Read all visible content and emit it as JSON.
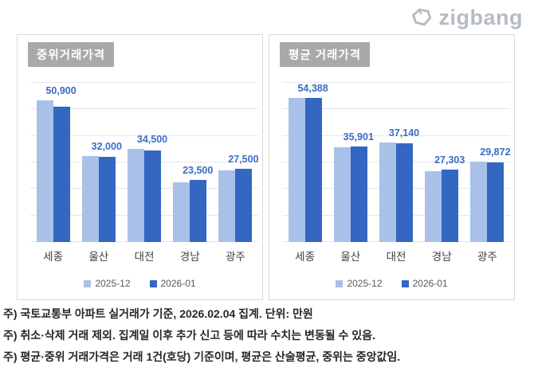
{
  "logo": {
    "text": "zigbang"
  },
  "colors": {
    "bar_2025_12": "#A9C1E8",
    "bar_2026_01": "#3367C2",
    "value_label": "#3B6CC5",
    "gridline": "#E4E7EC",
    "title_bg": "#A9A9A9",
    "title_text": "#FFFFFF",
    "axis_text": "#3F3F3F",
    "legend_text": "#595959",
    "panel_border": "#D8D8D8",
    "logo": "#B6BCC4",
    "footnote_text": "#262626"
  },
  "chart_data": [
    {
      "type": "bar",
      "title": "중위거래가격",
      "categories": [
        "세종",
        "울산",
        "대전",
        "경남",
        "광주"
      ],
      "series": [
        {
          "name": "2025-12",
          "labeled": false,
          "values": [
            53300,
            32500,
            35000,
            22400,
            27000
          ]
        },
        {
          "name": "2026-01",
          "labeled": true,
          "values": [
            50900,
            32000,
            34500,
            23500,
            27500
          ],
          "labels": [
            "50,900",
            "32,000",
            "34,500",
            "23,500",
            "27,500"
          ]
        }
      ],
      "ylim": [
        0,
        60000
      ],
      "grid_step": 10000,
      "grid": true,
      "legend_position": "bottom",
      "xlabel": "",
      "ylabel": ""
    },
    {
      "type": "bar",
      "title": "평균 거래가격",
      "categories": [
        "세종",
        "울산",
        "대전",
        "경남",
        "광주"
      ],
      "series": [
        {
          "name": "2025-12",
          "labeled": false,
          "values": [
            54200,
            35800,
            37400,
            26800,
            30300
          ]
        },
        {
          "name": "2026-01",
          "labeled": true,
          "values": [
            54388,
            35901,
            37140,
            27303,
            29872
          ],
          "labels": [
            "54,388",
            "35,901",
            "37,140",
            "27,303",
            "29,872"
          ]
        }
      ],
      "ylim": [
        0,
        60000
      ],
      "grid_step": 10000,
      "grid": true,
      "legend_position": "bottom",
      "xlabel": "",
      "ylabel": ""
    }
  ],
  "footnotes": [
    "주) 국토교통부 아파트 실거래가 기준, 2026.02.04 집계. 단위: 만원",
    "주) 취소·삭제 거래 제외. 집계일 이후 추가 신고 등에 따라 수치는 변동될 수 있음.",
    "주) 평균·중위 거래가격은 거래 1건(호당) 기준이며, 평균은 산술평균, 중위는 중앙값임."
  ]
}
